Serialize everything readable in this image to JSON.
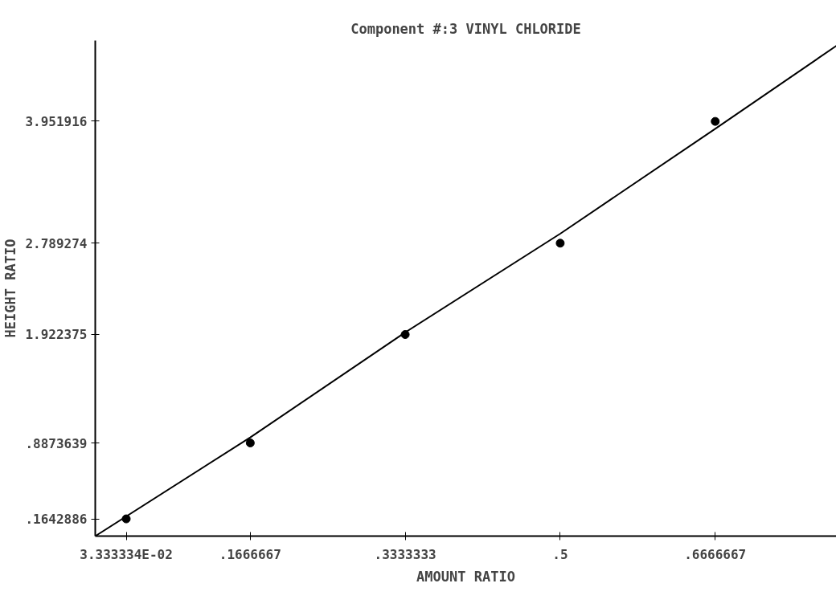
{
  "chart_data": {
    "type": "scatter",
    "title": "Component #:3 VINYL CHLORIDE",
    "xlabel": "AMOUNT RATIO",
    "ylabel": "HEIGHT RATIO",
    "xlim": [
      0,
      0.797
    ],
    "ylim": [
      0,
      4.72
    ],
    "xticks": [
      {
        "value": 0.03333334,
        "label": "3.333334E-02"
      },
      {
        "value": 0.1666667,
        "label": ".1666667"
      },
      {
        "value": 0.3333333,
        "label": ".3333333"
      },
      {
        "value": 0.5,
        "label": ".5"
      },
      {
        "value": 0.6666667,
        "label": ".6666667"
      }
    ],
    "yticks": [
      {
        "value": 0.1642886,
        "label": ".1642886"
      },
      {
        "value": 0.8873639,
        "label": ".8873639"
      },
      {
        "value": 1.922375,
        "label": "1.922375"
      },
      {
        "value": 2.789274,
        "label": "2.789274"
      },
      {
        "value": 3.951916,
        "label": "3.951916"
      }
    ],
    "grid": false,
    "series": [
      {
        "marker": "circle",
        "color": "#000000",
        "x": [
          0.0333,
          0.1667,
          0.3333,
          0.5,
          0.6667
        ],
        "values": [
          0.164,
          0.887,
          1.92,
          2.79,
          3.95
        ]
      },
      {
        "type": "line",
        "color": "#000000",
        "x": [
          0,
          0.1667,
          0.3333,
          0.5,
          0.6667,
          0.797
        ],
        "values": [
          0,
          0.94,
          1.94,
          2.88,
          3.88,
          4.67
        ]
      }
    ]
  }
}
